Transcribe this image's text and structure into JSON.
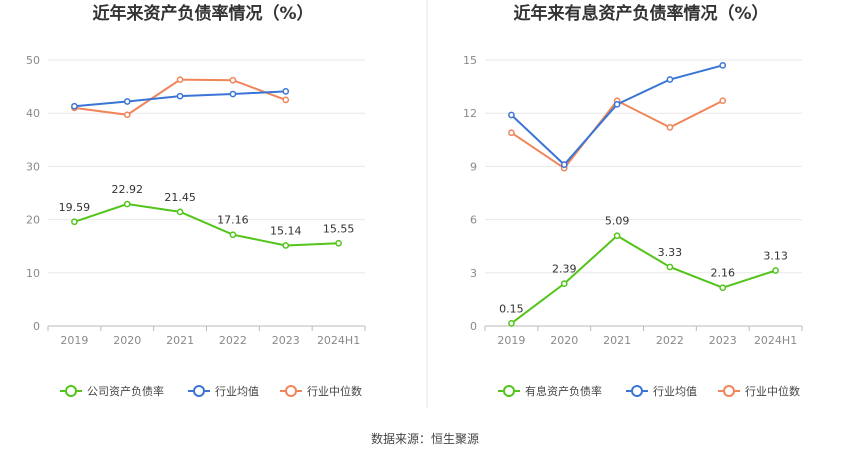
{
  "source_label": "数据来源：恒生聚源",
  "chart_data": [
    {
      "type": "line",
      "title": "近年来资产负债率情况（%）",
      "categories": [
        "2019",
        "2020",
        "2021",
        "2022",
        "2023",
        "2024H1"
      ],
      "ylim": [
        0,
        50
      ],
      "yticks": [
        "0",
        "10",
        "20",
        "30",
        "40",
        "50"
      ],
      "series": [
        {
          "name": "公司资产负债率",
          "color": "#52c41a",
          "values": [
            19.59,
            22.92,
            21.45,
            17.16,
            15.14,
            15.55
          ],
          "labels": [
            "19.59",
            "22.92",
            "21.45",
            "17.16",
            "15.14",
            "15.55"
          ]
        },
        {
          "name": "行业均值",
          "color": "#3a75d6",
          "values": [
            41.3,
            42.2,
            43.2,
            43.6,
            44.1,
            null
          ]
        },
        {
          "name": "行业中位数",
          "color": "#f0855a",
          "values": [
            41.0,
            39.7,
            46.3,
            46.2,
            42.5,
            null
          ]
        }
      ]
    },
    {
      "type": "line",
      "title": "近年来有息资产负债率情况（%）",
      "categories": [
        "2019",
        "2020",
        "2021",
        "2022",
        "2023",
        "2024H1"
      ],
      "ylim": [
        0,
        15
      ],
      "yticks": [
        "0",
        "3",
        "6",
        "9",
        "12",
        "15"
      ],
      "series": [
        {
          "name": "有息资产负债率",
          "color": "#52c41a",
          "values": [
            0.15,
            2.39,
            5.09,
            3.33,
            2.16,
            3.13
          ],
          "labels": [
            "0.15",
            "2.39",
            "5.09",
            "3.33",
            "2.16",
            "3.13"
          ]
        },
        {
          "name": "行业均值",
          "color": "#3a75d6",
          "values": [
            11.9,
            9.1,
            12.5,
            13.9,
            14.7,
            null
          ]
        },
        {
          "name": "行业中位数",
          "color": "#f0855a",
          "values": [
            10.9,
            8.9,
            12.7,
            11.2,
            12.7,
            null
          ]
        }
      ]
    }
  ]
}
